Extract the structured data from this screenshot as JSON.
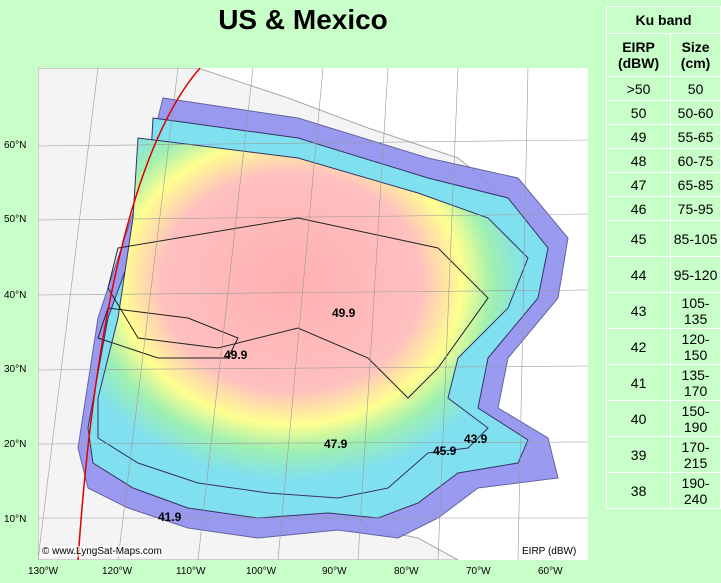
{
  "title": "US & Mexico",
  "credit": "© www.LyngSat-Maps.com",
  "eirp_unit": "EIRP (dBW)",
  "lat_labels": [
    "60°N",
    "50°N",
    "40°N",
    "30°N",
    "20°N",
    "10°N"
  ],
  "lon_labels": [
    "130°W",
    "120°W",
    "110°W",
    "100°W",
    "90°W",
    "80°W",
    "70°W",
    "60°W"
  ],
  "contour_labels": [
    "49.9",
    "49.9",
    "47.9",
    "45.9",
    "43.9",
    "41.9"
  ],
  "legend": {
    "band": "Ku band",
    "col1": "EIRP (dBW)",
    "col2": "Size (cm)",
    "rows": [
      {
        "eirp": ">50",
        "size": "50"
      },
      {
        "eirp": "50",
        "size": "50-60"
      },
      {
        "eirp": "49",
        "size": "55-65"
      },
      {
        "eirp": "48",
        "size": "60-75"
      },
      {
        "eirp": "47",
        "size": "65-85"
      },
      {
        "eirp": "46",
        "size": "75-95"
      },
      {
        "eirp": "45",
        "size": "85-105"
      },
      {
        "eirp": "44",
        "size": "95-120"
      },
      {
        "eirp": "43",
        "size": "105-135"
      },
      {
        "eirp": "42",
        "size": "120-150"
      },
      {
        "eirp": "41",
        "size": "135-170"
      },
      {
        "eirp": "40",
        "size": "150-190"
      },
      {
        "eirp": "39",
        "size": "170-215"
      },
      {
        "eirp": "38",
        "size": "190-240"
      }
    ]
  },
  "colors": {
    "background": "#c8ffc8",
    "visible_edge": "#dd0000",
    "outer_blue": "#8c8cf0",
    "cyan": "#80e0f0",
    "yellow": "#ffff90",
    "red_core": "#ffb0b0"
  }
}
